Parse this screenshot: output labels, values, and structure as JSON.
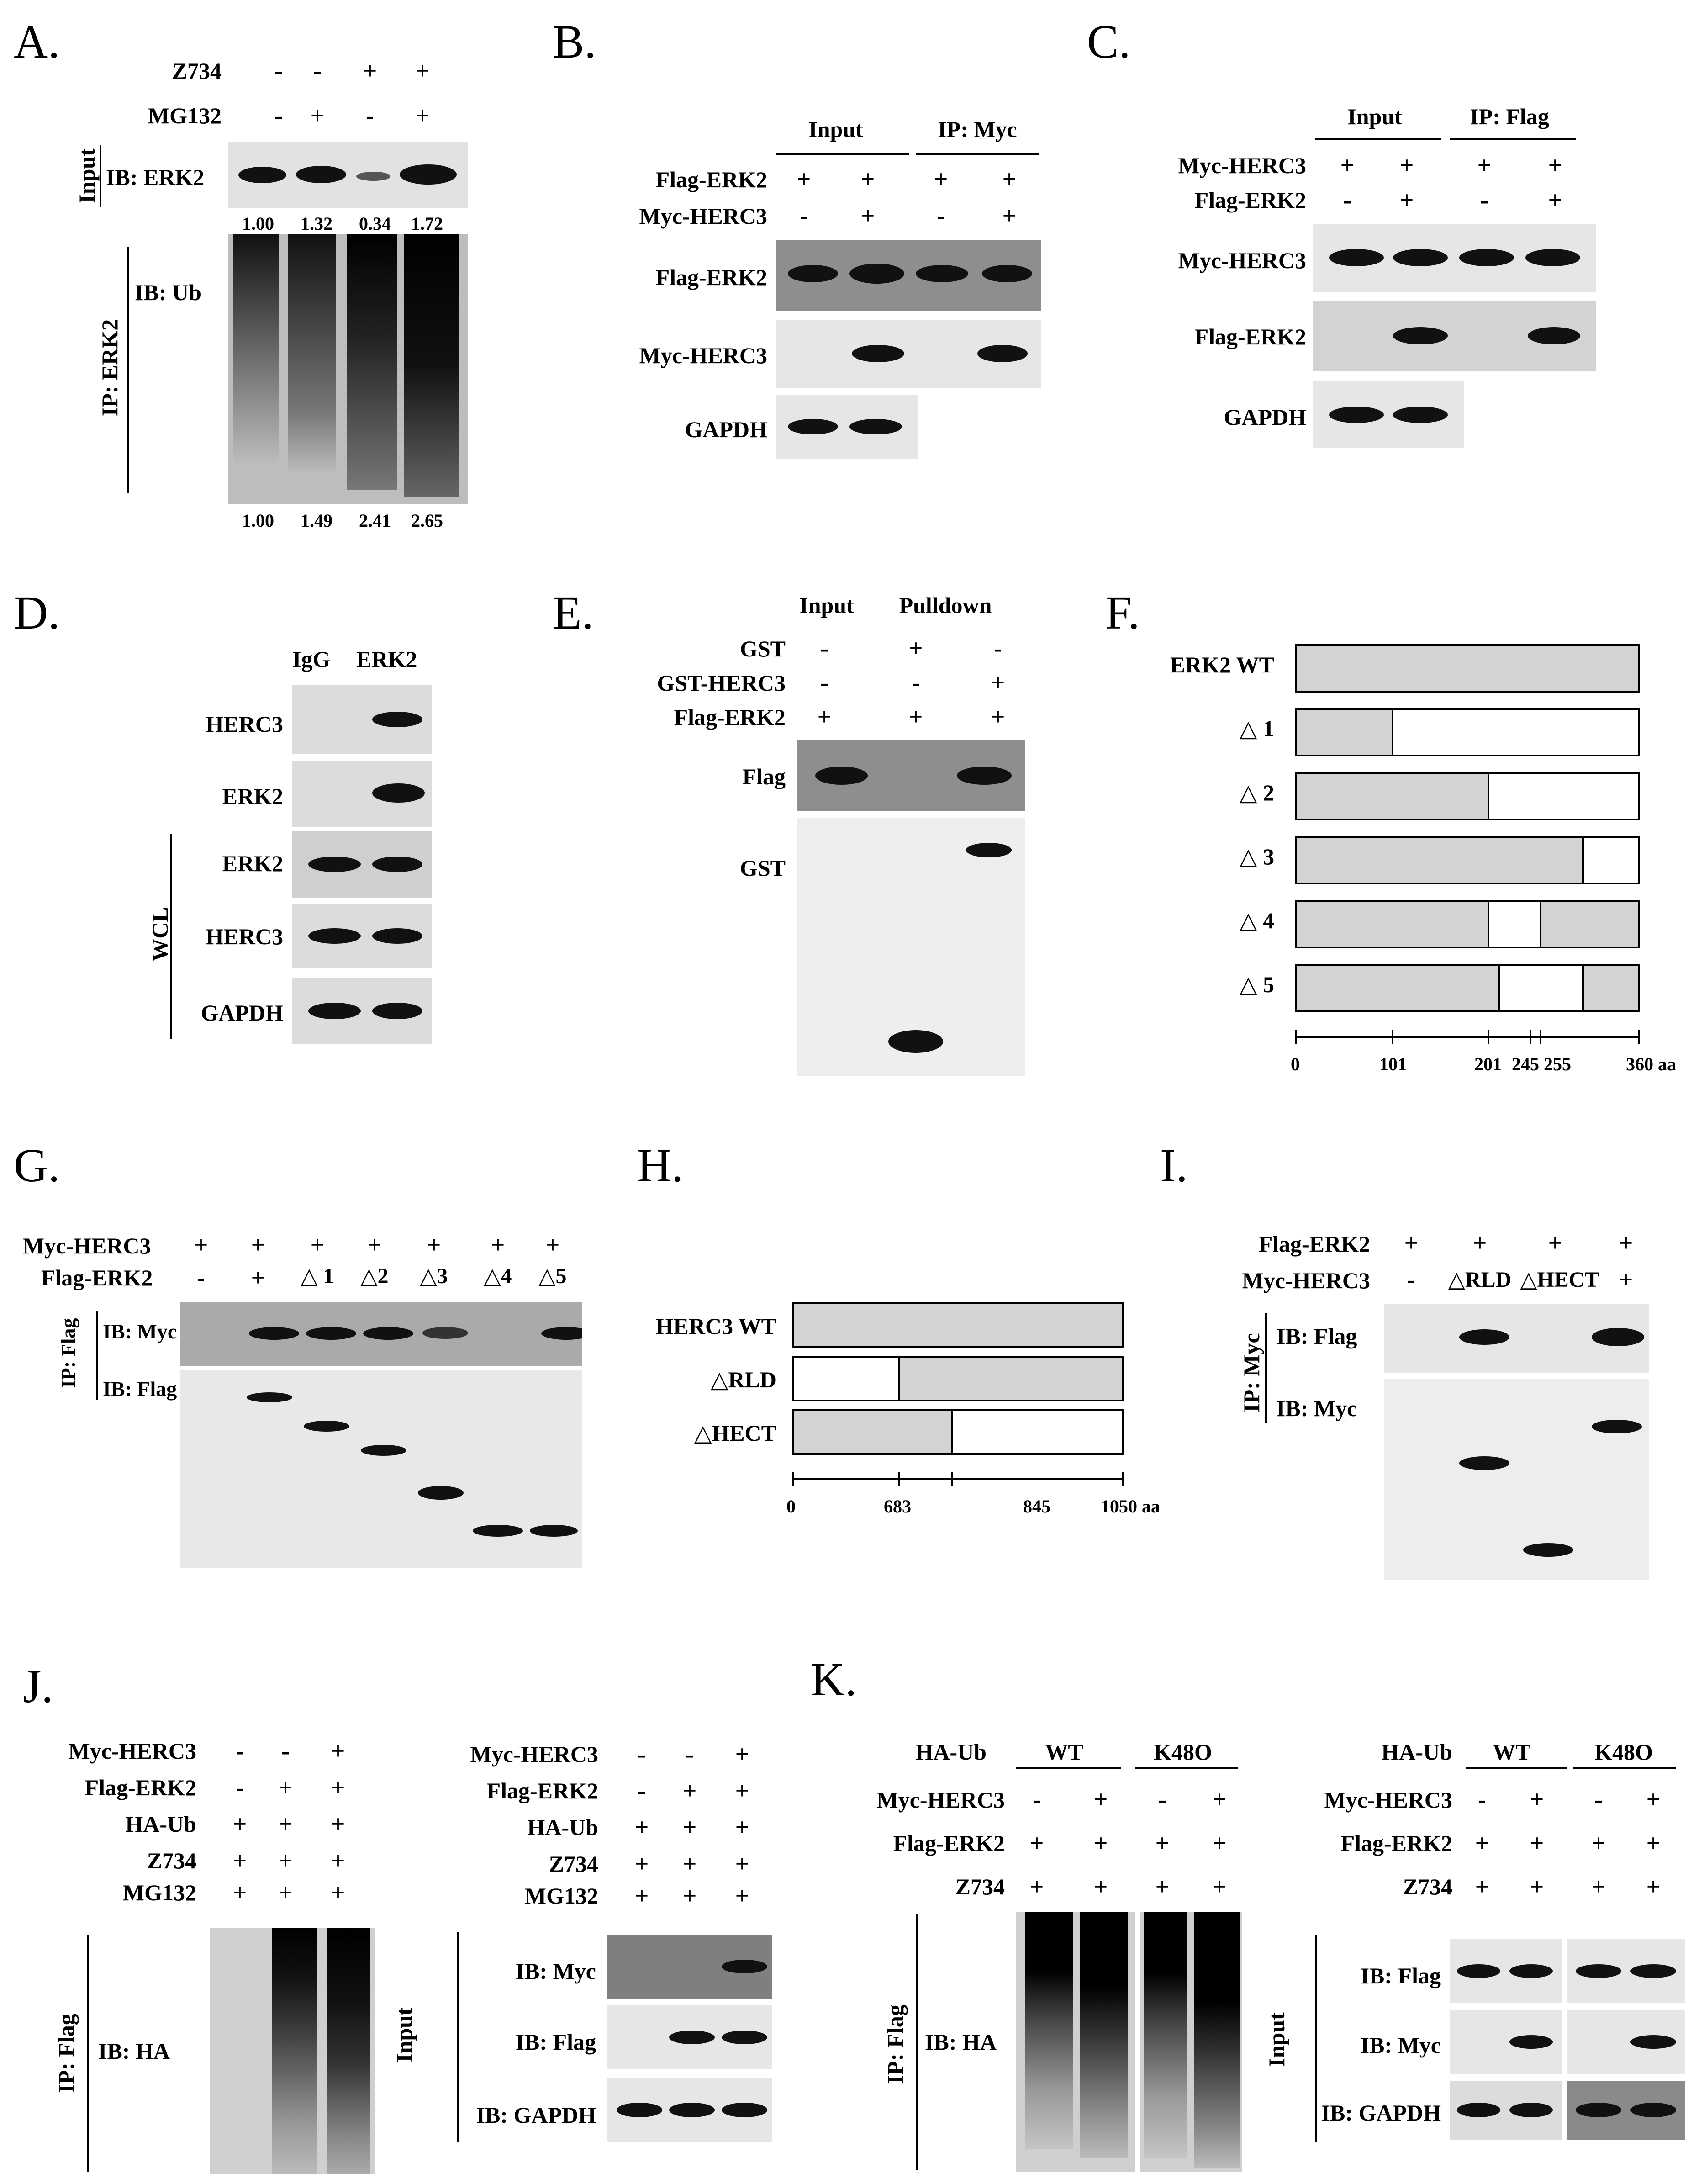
{
  "panelA": {
    "label": "A.",
    "z734": "Z734",
    "mg132": "MG132",
    "z_signs": [
      "-",
      "-",
      "+",
      "+"
    ],
    "m_signs": [
      "-",
      "+",
      "-",
      "+"
    ],
    "input": "Input",
    "ib_erk2": "IB: ERK2",
    "input_vals": [
      "1.00",
      "1.32",
      "0.34",
      "1.72"
    ],
    "ib_ub": "IB: Ub",
    "ip_erk2": "IP: ERK2",
    "ub_vals": [
      "1.00",
      "1.49",
      "2.41",
      "2.65"
    ]
  },
  "panelB": {
    "label": "B.",
    "input": "Input",
    "ip": "IP: Myc",
    "flag_erk2": "Flag-ERK2",
    "myc_herc3": "Myc-HERC3",
    "f_signs": [
      "+",
      "+",
      "+",
      "+"
    ],
    "m_signs": [
      "-",
      "+",
      "-",
      "+"
    ],
    "gapdh": "GAPDH"
  },
  "panelC": {
    "label": "C.",
    "input": "Input",
    "ip": "IP: Flag",
    "myc_herc3": "Myc-HERC3",
    "flag_erk2": "Flag-ERK2",
    "m_signs": [
      "+",
      "+",
      "+",
      "+"
    ],
    "f_signs": [
      "-",
      "+",
      "-",
      "+"
    ],
    "gapdh": "GAPDH"
  },
  "panelD": {
    "label": "D.",
    "igg": "IgG",
    "erk2": "ERK2",
    "rows": [
      "HERC3",
      "ERK2",
      "ERK2",
      "HERC3",
      "GAPDH"
    ],
    "wcl": "WCL"
  },
  "panelE": {
    "label": "E.",
    "input": "Input",
    "pulldown": "Pulldown",
    "gst": "GST",
    "gst_herc3": "GST-HERC3",
    "flag_erk2": "Flag-ERK2",
    "gst_signs": [
      "-",
      "+",
      "-"
    ],
    "gh_signs": [
      "-",
      "-",
      "+"
    ],
    "fe_signs": [
      "+",
      "+",
      "+"
    ],
    "flag": "Flag",
    "gst_blot": "GST"
  },
  "panelF": {
    "label": "F.",
    "rows": [
      "ERK2 WT",
      "△ 1",
      "△ 2",
      "△ 3",
      "△ 4",
      "△ 5"
    ],
    "ticks": [
      "0",
      "101",
      "201",
      "245",
      "255",
      "360 aa"
    ]
  },
  "panelG": {
    "label": "G.",
    "myc_herc3": "Myc-HERC3",
    "flag_erk2": "Flag-ERK2",
    "m_signs": [
      "+",
      "+",
      "+",
      "+",
      "+",
      "+",
      "+"
    ],
    "f_signs": [
      "-",
      "+",
      "△ 1",
      "△2",
      "△3",
      "△4",
      "△5"
    ],
    "ip": "IP: Flag",
    "ib_myc": "IB: Myc",
    "ib_flag": "IB: Flag"
  },
  "panelH": {
    "label": "H.",
    "rows": [
      "HERC3 WT",
      "△RLD",
      "△HECT"
    ],
    "ticks": [
      "0",
      "683",
      "845",
      "1050 aa"
    ]
  },
  "panelI": {
    "label": "I.",
    "flag_erk2": "Flag-ERK2",
    "myc_herc3": "Myc-HERC3",
    "f_signs": [
      "+",
      "+",
      "+",
      "+"
    ],
    "m_signs": [
      "-",
      "△RLD",
      "△HECT",
      "+"
    ],
    "ip": "IP: Myc",
    "ib_flag": "IB: Flag",
    "ib_myc": "IB: Myc"
  },
  "panelJ": {
    "label": "J.",
    "conds": [
      "Myc-HERC3",
      "Flag-ERK2",
      "HA-Ub",
      "Z734",
      "MG132"
    ],
    "signs": [
      [
        "-",
        "-",
        "+"
      ],
      [
        "-",
        "+",
        "+"
      ],
      [
        "+",
        "+",
        "+"
      ],
      [
        "+",
        "+",
        "+"
      ],
      [
        "+",
        "+",
        "+"
      ]
    ],
    "ip": "IP: Flag",
    "ib_ha": "IB: HA",
    "input": "Input",
    "ib_myc": "IB: Myc",
    "ib_flag": "IB: Flag",
    "ib_gapdh": "IB: GAPDH"
  },
  "panelK": {
    "label": "K.",
    "ha_ub": "HA-Ub",
    "wt": "WT",
    "k48o": "K48O",
    "myc_herc3": "Myc-HERC3",
    "flag_erk2": "Flag-ERK2",
    "z734": "Z734",
    "m_signs": [
      "-",
      "+",
      "-",
      "+"
    ],
    "f_signs": [
      "+",
      "+",
      "+",
      "+"
    ],
    "z_signs": [
      "+",
      "+",
      "+",
      "+"
    ],
    "ip": "IP: Flag",
    "ib_ha": "IB: HA",
    "input": "Input",
    "ib_flag": "IB: Flag",
    "ib_myc": "IB: Myc",
    "ib_gapdh": "IB: GAPDH"
  }
}
